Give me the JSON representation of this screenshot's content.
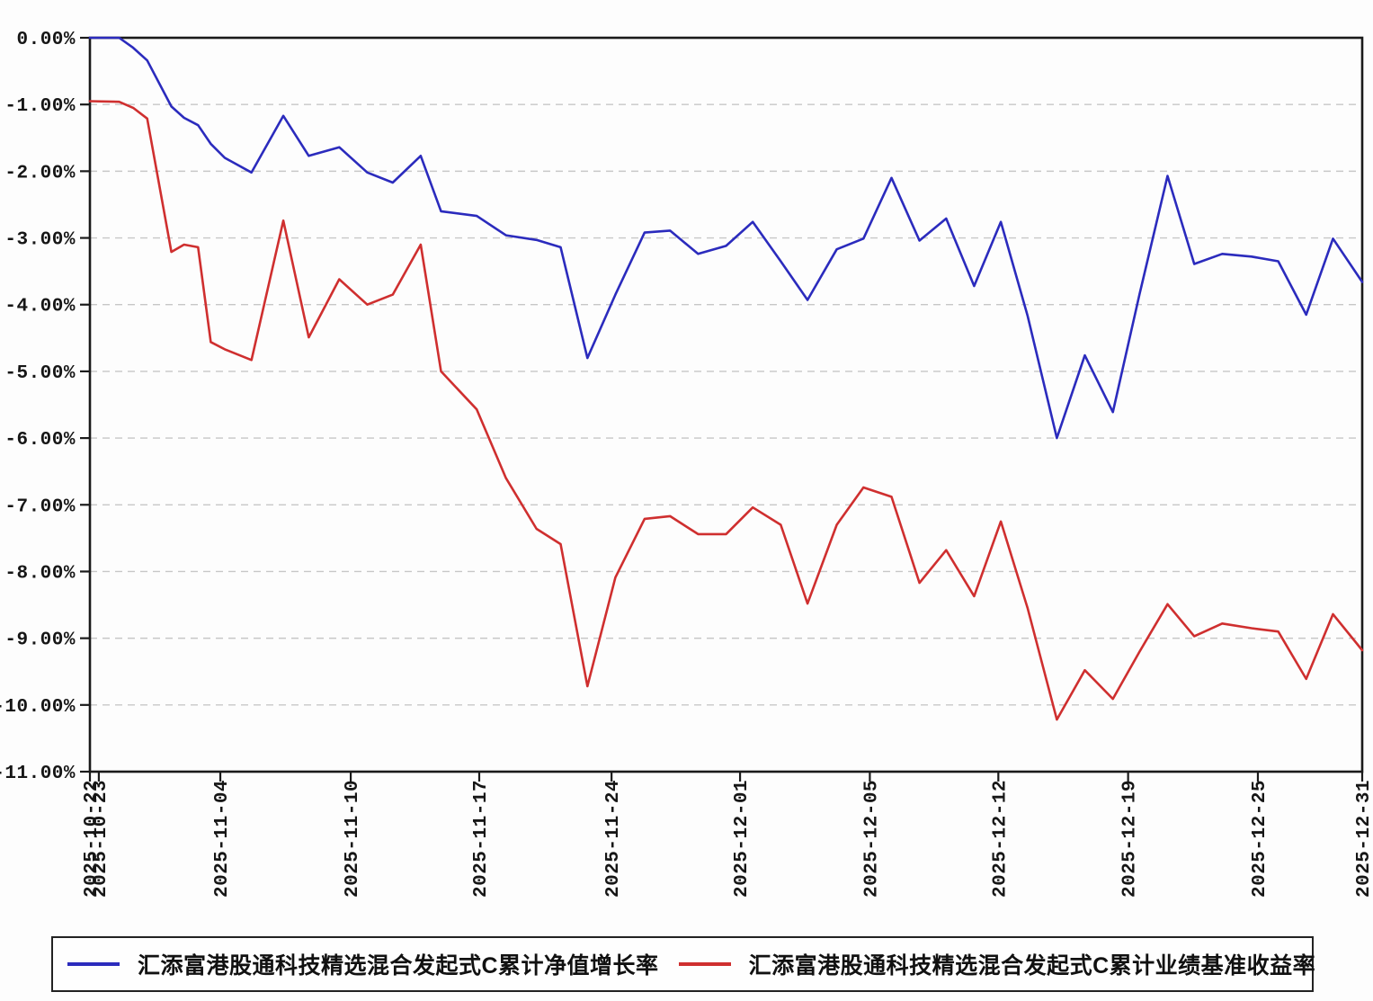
{
  "chart_data": {
    "type": "line",
    "title": "",
    "grid": "horizontal-dashed",
    "legend_position": "bottom",
    "y_axis": {
      "unit": "%",
      "min": -11,
      "max": 0,
      "step": 1,
      "tick_labels": [
        "0.00%",
        "-1.00%",
        "-2.00%",
        "-3.00%",
        "-4.00%",
        "-5.00%",
        "-6.00%",
        "-7.00%",
        "-8.00%",
        "-9.00%",
        "-10.00%",
        "-11.00%"
      ]
    },
    "x_axis": {
      "ticks": [
        {
          "label": "2025-10-22",
          "pos": 0.0
        },
        {
          "label": "2025-10-23",
          "pos": 0.007
        },
        {
          "label": "2025-11-04",
          "pos": 0.1025
        },
        {
          "label": "2025-11-10",
          "pos": 0.205
        },
        {
          "label": "2025-11-17",
          "pos": 0.306
        },
        {
          "label": "2025-11-24",
          "pos": 0.41
        },
        {
          "label": "2025-12-01",
          "pos": 0.511
        },
        {
          "label": "2025-12-05",
          "pos": 0.613
        },
        {
          "label": "2025-12-12",
          "pos": 0.714
        },
        {
          "label": "2025-12-19",
          "pos": 0.816
        },
        {
          "label": "2025-12-25",
          "pos": 0.918
        },
        {
          "label": "2025-12-31",
          "pos": 1.0
        }
      ]
    },
    "series": [
      {
        "name": "汇添富港股通科技精选混合发起式C累计净值增长率",
        "color": "#2b2bbd",
        "x": [
          0.0,
          0.023,
          0.034,
          0.045,
          0.064,
          0.074,
          0.085,
          0.095,
          0.106,
          0.127,
          0.152,
          0.172,
          0.196,
          0.218,
          0.238,
          0.26,
          0.276,
          0.304,
          0.327,
          0.351,
          0.37,
          0.391,
          0.413,
          0.436,
          0.456,
          0.478,
          0.5,
          0.521,
          0.543,
          0.564,
          0.587,
          0.608,
          0.63,
          0.652,
          0.673,
          0.695,
          0.716,
          0.737,
          0.76,
          0.782,
          0.804,
          0.825,
          0.847,
          0.868,
          0.89,
          0.913,
          0.934,
          0.956,
          0.977,
          1.0
        ],
        "values": [
          0.0,
          0.0,
          -0.15,
          -0.34,
          -1.03,
          -1.2,
          -1.31,
          -1.59,
          -1.8,
          -2.02,
          -1.17,
          -1.77,
          -1.64,
          -2.02,
          -2.17,
          -1.77,
          -2.6,
          -2.67,
          -2.96,
          -3.03,
          -3.14,
          -4.8,
          -3.85,
          -2.92,
          -2.89,
          -3.24,
          -3.12,
          -2.76,
          -3.35,
          -3.93,
          -3.17,
          -3.01,
          -2.1,
          -3.04,
          -2.71,
          -3.72,
          -2.76,
          -4.17,
          -6.0,
          -4.76,
          -5.61,
          -3.84,
          -2.07,
          -3.39,
          -3.24,
          -3.28,
          -3.35,
          -4.15,
          -3.01,
          -3.66
        ]
      },
      {
        "name": "汇添富港股通科技精选混合发起式C累计业绩基准收益率",
        "color": "#cf2f2f",
        "x": [
          0.0,
          0.023,
          0.034,
          0.045,
          0.064,
          0.074,
          0.085,
          0.095,
          0.106,
          0.127,
          0.152,
          0.172,
          0.196,
          0.218,
          0.238,
          0.26,
          0.276,
          0.304,
          0.327,
          0.351,
          0.37,
          0.391,
          0.413,
          0.436,
          0.456,
          0.478,
          0.5,
          0.521,
          0.543,
          0.564,
          0.587,
          0.608,
          0.63,
          0.652,
          0.673,
          0.695,
          0.716,
          0.737,
          0.76,
          0.782,
          0.804,
          0.825,
          0.847,
          0.868,
          0.89,
          0.913,
          0.934,
          0.956,
          0.977,
          1.0
        ],
        "values": [
          -0.95,
          -0.96,
          -1.05,
          -1.21,
          -3.21,
          -3.1,
          -3.14,
          -4.56,
          -4.67,
          -4.83,
          -2.74,
          -4.49,
          -3.62,
          -4.0,
          -3.85,
          -3.1,
          -5.0,
          -5.57,
          -6.6,
          -7.36,
          -7.59,
          -9.72,
          -8.09,
          -7.21,
          -7.17,
          -7.44,
          -7.44,
          -7.04,
          -7.3,
          -8.48,
          -7.3,
          -6.74,
          -6.88,
          -8.17,
          -7.68,
          -8.37,
          -7.25,
          -8.55,
          -10.22,
          -9.48,
          -9.91,
          -9.2,
          -8.49,
          -8.97,
          -8.78,
          -8.85,
          -8.9,
          -9.61,
          -8.64,
          -9.18
        ]
      }
    ]
  }
}
